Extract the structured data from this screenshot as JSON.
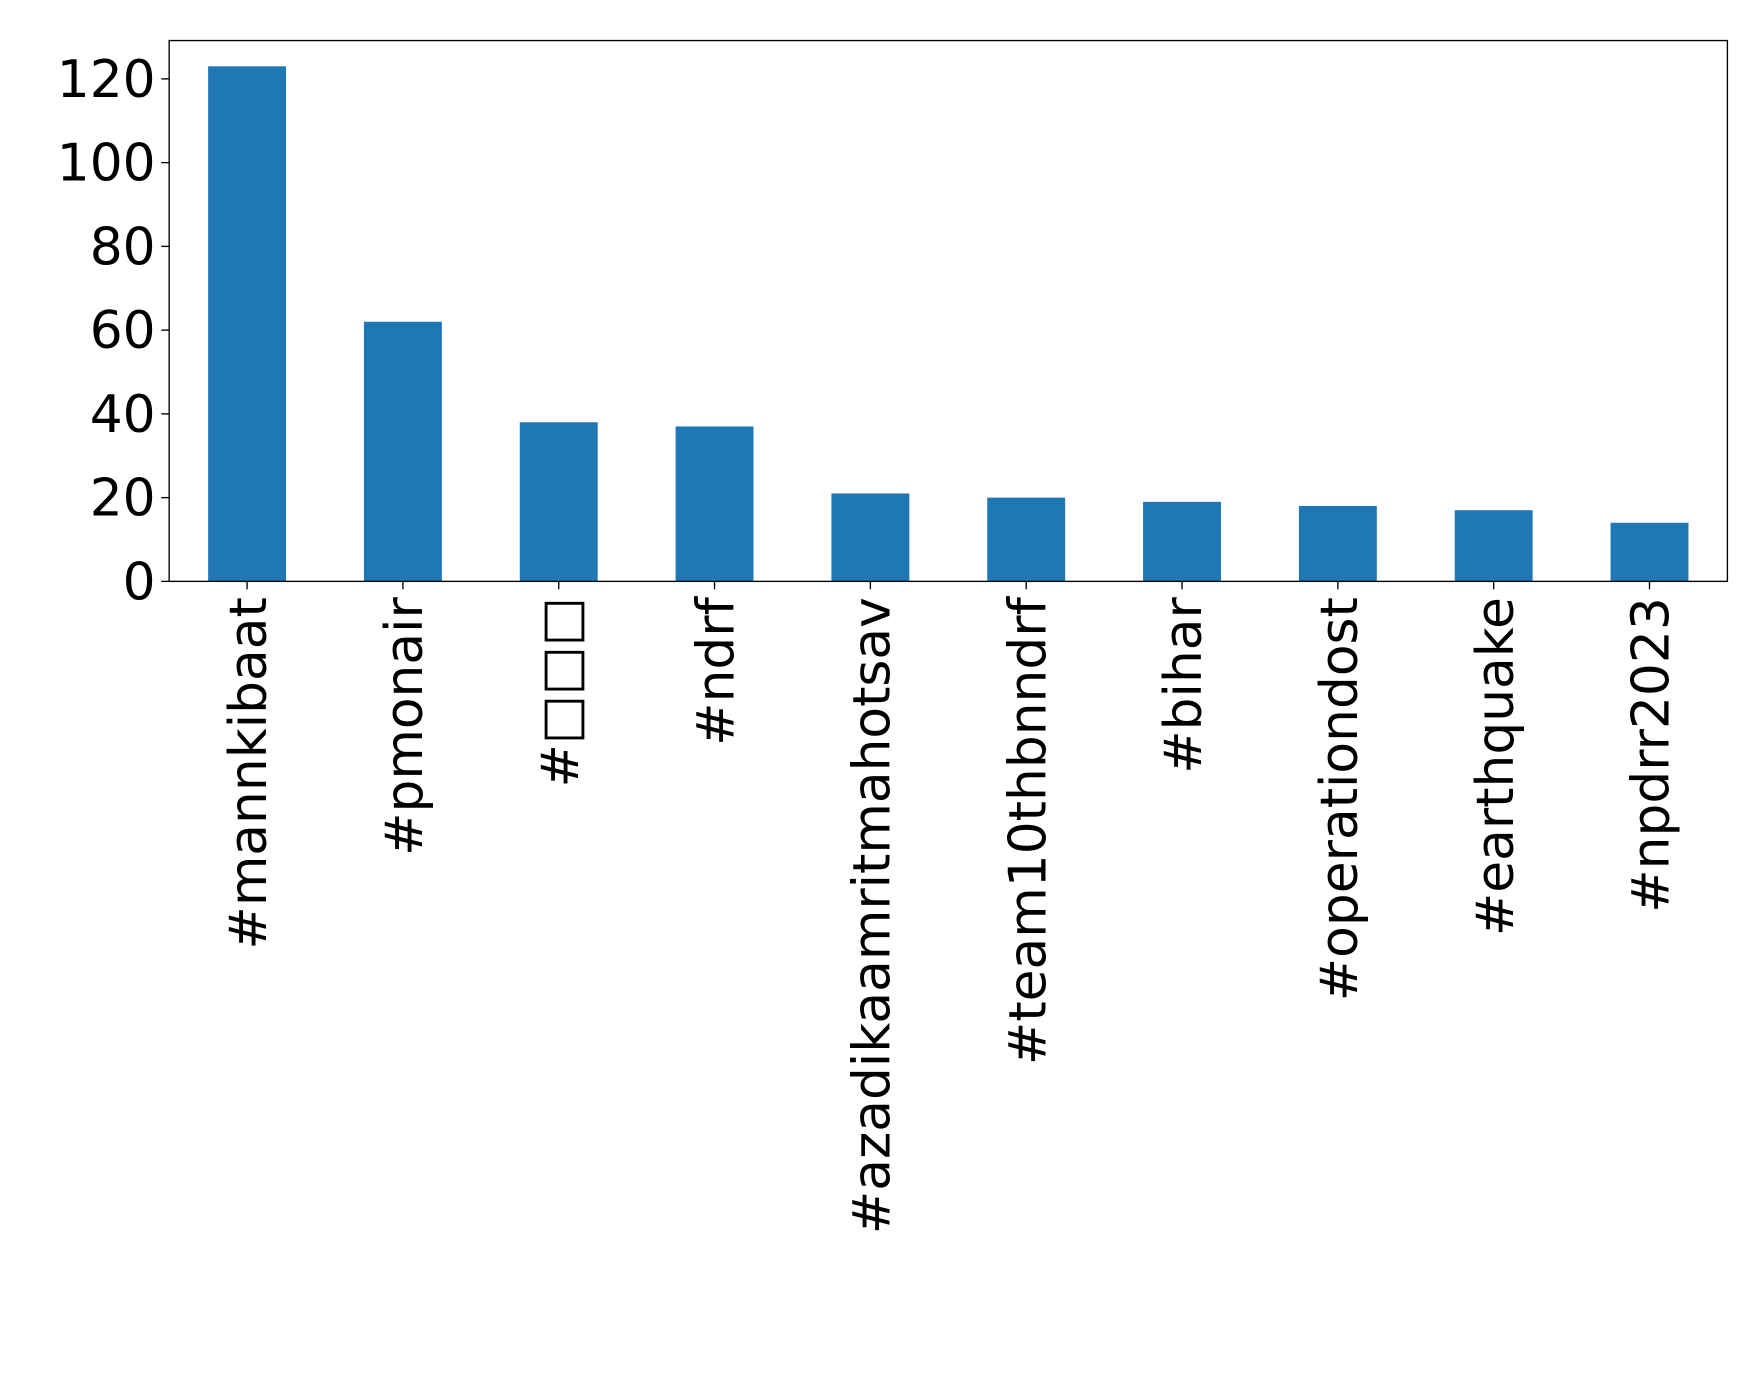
{
  "chart_data": {
    "type": "bar",
    "categories": [
      "#mannkibaat",
      "#pmonair",
      "#□□□",
      "#ndrf",
      "#azadikaamritmahotsav",
      "#team10thbnndrf",
      "#bihar",
      "#operationdost",
      "#earthquake",
      "#npdrr2023"
    ],
    "values": [
      123,
      62,
      38,
      37,
      21,
      20,
      19,
      18,
      17,
      14
    ],
    "color": "#1f77b4",
    "ylim": [
      0,
      129.15
    ],
    "yticks": [
      0,
      20,
      40,
      60,
      80,
      100,
      120
    ],
    "grid": false
  }
}
